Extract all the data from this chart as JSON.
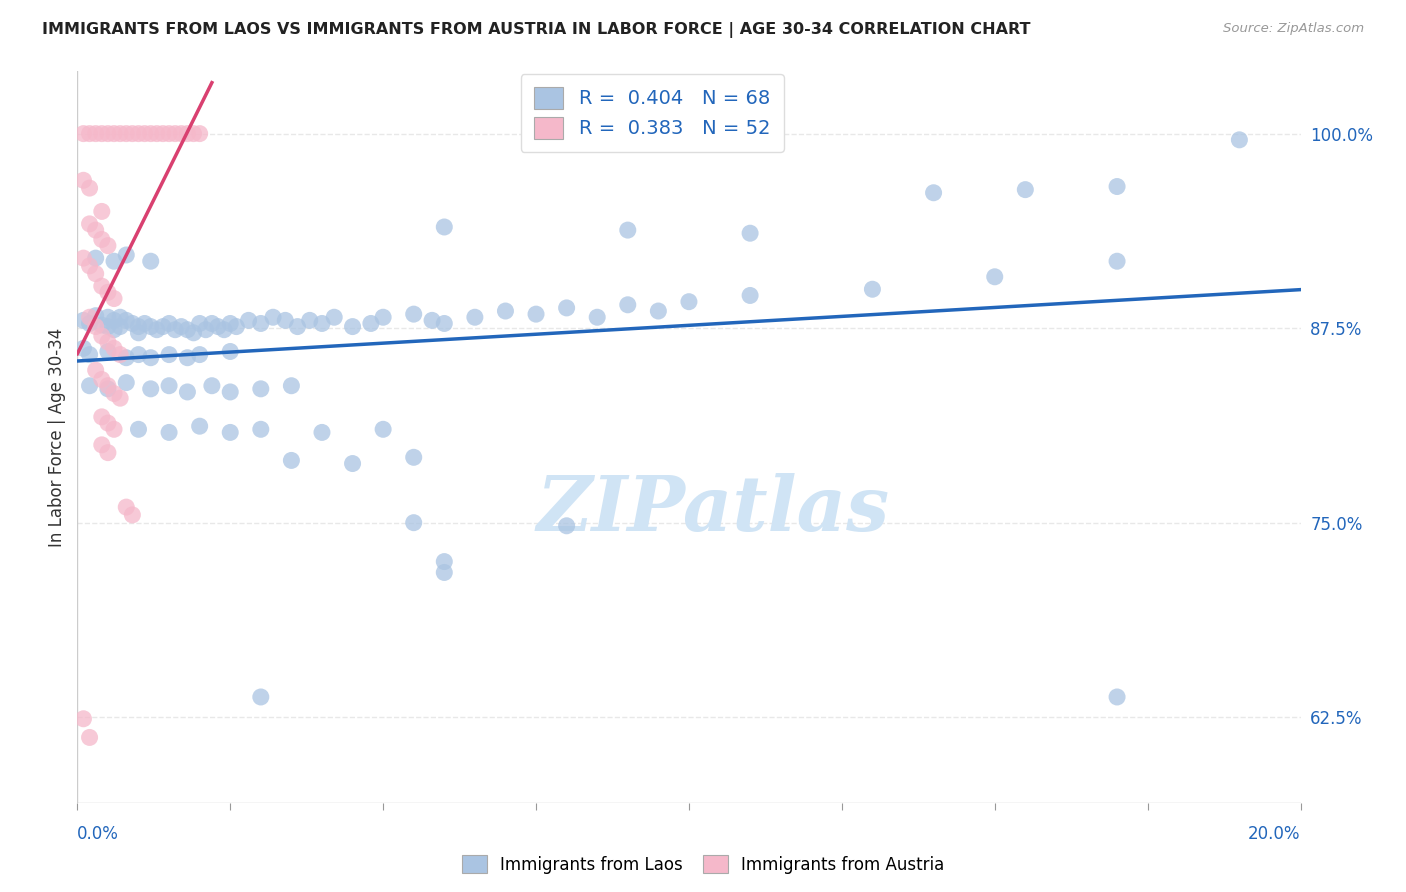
{
  "title": "IMMIGRANTS FROM LAOS VS IMMIGRANTS FROM AUSTRIA IN LABOR FORCE | AGE 30-34 CORRELATION CHART",
  "source": "Source: ZipAtlas.com",
  "ylabel": "In Labor Force | Age 30-34",
  "right_yticks": [
    0.625,
    0.75,
    0.875,
    1.0
  ],
  "right_yticklabels": [
    "62.5%",
    "75.0%",
    "87.5%",
    "100.0%"
  ],
  "xlim": [
    0.0,
    0.2
  ],
  "ylim": [
    0.57,
    1.04
  ],
  "blue_R": 0.404,
  "blue_N": 68,
  "pink_R": 0.383,
  "pink_N": 52,
  "blue_color": "#aac4e2",
  "blue_line_color": "#2266bb",
  "pink_color": "#f5b8ca",
  "pink_line_color": "#d94070",
  "legend_label_blue": "Immigrants from Laos",
  "legend_label_pink": "Immigrants from Austria",
  "blue_dots": [
    [
      0.001,
      0.88
    ],
    [
      0.002,
      0.878
    ],
    [
      0.003,
      0.883
    ],
    [
      0.004,
      0.877
    ],
    [
      0.005,
      0.882
    ],
    [
      0.005,
      0.876
    ],
    [
      0.006,
      0.88
    ],
    [
      0.006,
      0.874
    ],
    [
      0.007,
      0.882
    ],
    [
      0.007,
      0.876
    ],
    [
      0.008,
      0.88
    ],
    [
      0.009,
      0.878
    ],
    [
      0.01,
      0.876
    ],
    [
      0.01,
      0.872
    ],
    [
      0.011,
      0.878
    ],
    [
      0.012,
      0.876
    ],
    [
      0.013,
      0.874
    ],
    [
      0.014,
      0.876
    ],
    [
      0.015,
      0.878
    ],
    [
      0.016,
      0.874
    ],
    [
      0.017,
      0.876
    ],
    [
      0.018,
      0.874
    ],
    [
      0.019,
      0.872
    ],
    [
      0.02,
      0.878
    ],
    [
      0.021,
      0.874
    ],
    [
      0.022,
      0.878
    ],
    [
      0.023,
      0.876
    ],
    [
      0.024,
      0.874
    ],
    [
      0.025,
      0.878
    ],
    [
      0.026,
      0.876
    ],
    [
      0.028,
      0.88
    ],
    [
      0.03,
      0.878
    ],
    [
      0.032,
      0.882
    ],
    [
      0.034,
      0.88
    ],
    [
      0.036,
      0.876
    ],
    [
      0.038,
      0.88
    ],
    [
      0.04,
      0.878
    ],
    [
      0.042,
      0.882
    ],
    [
      0.045,
      0.876
    ],
    [
      0.048,
      0.878
    ],
    [
      0.05,
      0.882
    ],
    [
      0.055,
      0.884
    ],
    [
      0.058,
      0.88
    ],
    [
      0.06,
      0.878
    ],
    [
      0.065,
      0.882
    ],
    [
      0.07,
      0.886
    ],
    [
      0.075,
      0.884
    ],
    [
      0.08,
      0.888
    ],
    [
      0.085,
      0.882
    ],
    [
      0.09,
      0.89
    ],
    [
      0.095,
      0.886
    ],
    [
      0.1,
      0.892
    ],
    [
      0.11,
      0.896
    ],
    [
      0.13,
      0.9
    ],
    [
      0.15,
      0.908
    ],
    [
      0.17,
      0.918
    ],
    [
      0.19,
      0.996
    ],
    [
      0.001,
      0.862
    ],
    [
      0.002,
      0.858
    ],
    [
      0.005,
      0.86
    ],
    [
      0.008,
      0.856
    ],
    [
      0.01,
      0.858
    ],
    [
      0.012,
      0.856
    ],
    [
      0.015,
      0.858
    ],
    [
      0.018,
      0.856
    ],
    [
      0.02,
      0.858
    ],
    [
      0.025,
      0.86
    ],
    [
      0.002,
      0.838
    ],
    [
      0.005,
      0.836
    ],
    [
      0.008,
      0.84
    ],
    [
      0.012,
      0.836
    ],
    [
      0.015,
      0.838
    ],
    [
      0.018,
      0.834
    ],
    [
      0.022,
      0.838
    ],
    [
      0.025,
      0.834
    ],
    [
      0.03,
      0.836
    ],
    [
      0.035,
      0.838
    ],
    [
      0.003,
      0.92
    ],
    [
      0.006,
      0.918
    ],
    [
      0.008,
      0.922
    ],
    [
      0.012,
      0.918
    ],
    [
      0.06,
      0.94
    ],
    [
      0.09,
      0.938
    ],
    [
      0.11,
      0.936
    ],
    [
      0.14,
      0.962
    ],
    [
      0.155,
      0.964
    ],
    [
      0.17,
      0.966
    ],
    [
      0.01,
      0.81
    ],
    [
      0.015,
      0.808
    ],
    [
      0.02,
      0.812
    ],
    [
      0.025,
      0.808
    ],
    [
      0.03,
      0.81
    ],
    [
      0.04,
      0.808
    ],
    [
      0.05,
      0.81
    ],
    [
      0.035,
      0.79
    ],
    [
      0.045,
      0.788
    ],
    [
      0.055,
      0.792
    ],
    [
      0.055,
      0.75
    ],
    [
      0.08,
      0.748
    ],
    [
      0.06,
      0.725
    ],
    [
      0.06,
      0.718
    ],
    [
      0.03,
      0.638
    ],
    [
      0.17,
      0.638
    ]
  ],
  "pink_dots": [
    [
      0.001,
      1.0
    ],
    [
      0.002,
      1.0
    ],
    [
      0.003,
      1.0
    ],
    [
      0.004,
      1.0
    ],
    [
      0.005,
      1.0
    ],
    [
      0.006,
      1.0
    ],
    [
      0.007,
      1.0
    ],
    [
      0.008,
      1.0
    ],
    [
      0.009,
      1.0
    ],
    [
      0.01,
      1.0
    ],
    [
      0.011,
      1.0
    ],
    [
      0.012,
      1.0
    ],
    [
      0.013,
      1.0
    ],
    [
      0.014,
      1.0
    ],
    [
      0.015,
      1.0
    ],
    [
      0.016,
      1.0
    ],
    [
      0.017,
      1.0
    ],
    [
      0.018,
      1.0
    ],
    [
      0.019,
      1.0
    ],
    [
      0.02,
      1.0
    ],
    [
      0.001,
      0.97
    ],
    [
      0.002,
      0.965
    ],
    [
      0.004,
      0.95
    ],
    [
      0.002,
      0.942
    ],
    [
      0.003,
      0.938
    ],
    [
      0.004,
      0.932
    ],
    [
      0.005,
      0.928
    ],
    [
      0.001,
      0.92
    ],
    [
      0.002,
      0.915
    ],
    [
      0.003,
      0.91
    ],
    [
      0.004,
      0.902
    ],
    [
      0.005,
      0.898
    ],
    [
      0.006,
      0.894
    ],
    [
      0.002,
      0.882
    ],
    [
      0.003,
      0.876
    ],
    [
      0.004,
      0.87
    ],
    [
      0.005,
      0.866
    ],
    [
      0.006,
      0.862
    ],
    [
      0.007,
      0.858
    ],
    [
      0.003,
      0.848
    ],
    [
      0.004,
      0.842
    ],
    [
      0.005,
      0.838
    ],
    [
      0.006,
      0.833
    ],
    [
      0.007,
      0.83
    ],
    [
      0.004,
      0.818
    ],
    [
      0.005,
      0.814
    ],
    [
      0.006,
      0.81
    ],
    [
      0.004,
      0.8
    ],
    [
      0.005,
      0.795
    ],
    [
      0.008,
      0.76
    ],
    [
      0.009,
      0.755
    ],
    [
      0.001,
      0.624
    ],
    [
      0.002,
      0.612
    ]
  ],
  "watermark": "ZIPatlas",
  "watermark_color": "#d0e4f5",
  "background_color": "#ffffff",
  "grid_color": "#e8e8e8"
}
